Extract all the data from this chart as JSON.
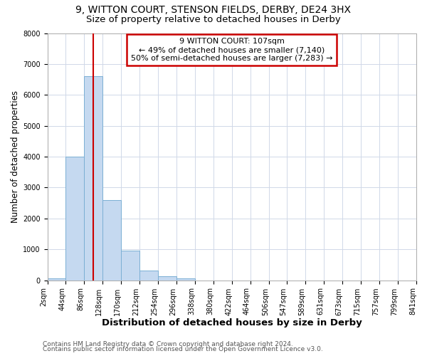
{
  "title": "9, WITTON COURT, STENSON FIELDS, DERBY, DE24 3HX",
  "subtitle": "Size of property relative to detached houses in Derby",
  "xlabel": "Distribution of detached houses by size in Derby",
  "ylabel": "Number of detached properties",
  "bin_edges": [
    2,
    44,
    86,
    128,
    170,
    212,
    254,
    296,
    338,
    380,
    422,
    464,
    506,
    547,
    589,
    631,
    673,
    715,
    757,
    799,
    841
  ],
  "bin_counts": [
    50,
    4000,
    6600,
    2600,
    950,
    320,
    130,
    50,
    0,
    0,
    0,
    0,
    0,
    0,
    0,
    0,
    0,
    0,
    0,
    0
  ],
  "bar_color": "#c5d9f0",
  "bar_edge_color": "#7bafd4",
  "vline_x": 107,
  "vline_color": "#cc0000",
  "annotation_line1": "9 WITTON COURT: 107sqm",
  "annotation_line2": "← 49% of detached houses are smaller (7,140)",
  "annotation_line3": "50% of semi-detached houses are larger (7,283) →",
  "annotation_box_color": "#cc0000",
  "ylim": [
    0,
    8000
  ],
  "yticks": [
    0,
    1000,
    2000,
    3000,
    4000,
    5000,
    6000,
    7000,
    8000
  ],
  "xtick_labels": [
    "2sqm",
    "44sqm",
    "86sqm",
    "128sqm",
    "170sqm",
    "212sqm",
    "254sqm",
    "296sqm",
    "338sqm",
    "380sqm",
    "422sqm",
    "464sqm",
    "506sqm",
    "547sqm",
    "589sqm",
    "631sqm",
    "673sqm",
    "715sqm",
    "757sqm",
    "799sqm",
    "841sqm"
  ],
  "footer1": "Contains HM Land Registry data © Crown copyright and database right 2024.",
  "footer2": "Contains public sector information licensed under the Open Government Licence v3.0.",
  "bg_color": "#ffffff",
  "grid_color": "#d0d8e8",
  "title_fontsize": 10,
  "subtitle_fontsize": 9.5,
  "xlabel_fontsize": 9.5,
  "ylabel_fontsize": 8.5,
  "tick_fontsize": 7,
  "annotation_fontsize": 8,
  "footer_fontsize": 6.5
}
